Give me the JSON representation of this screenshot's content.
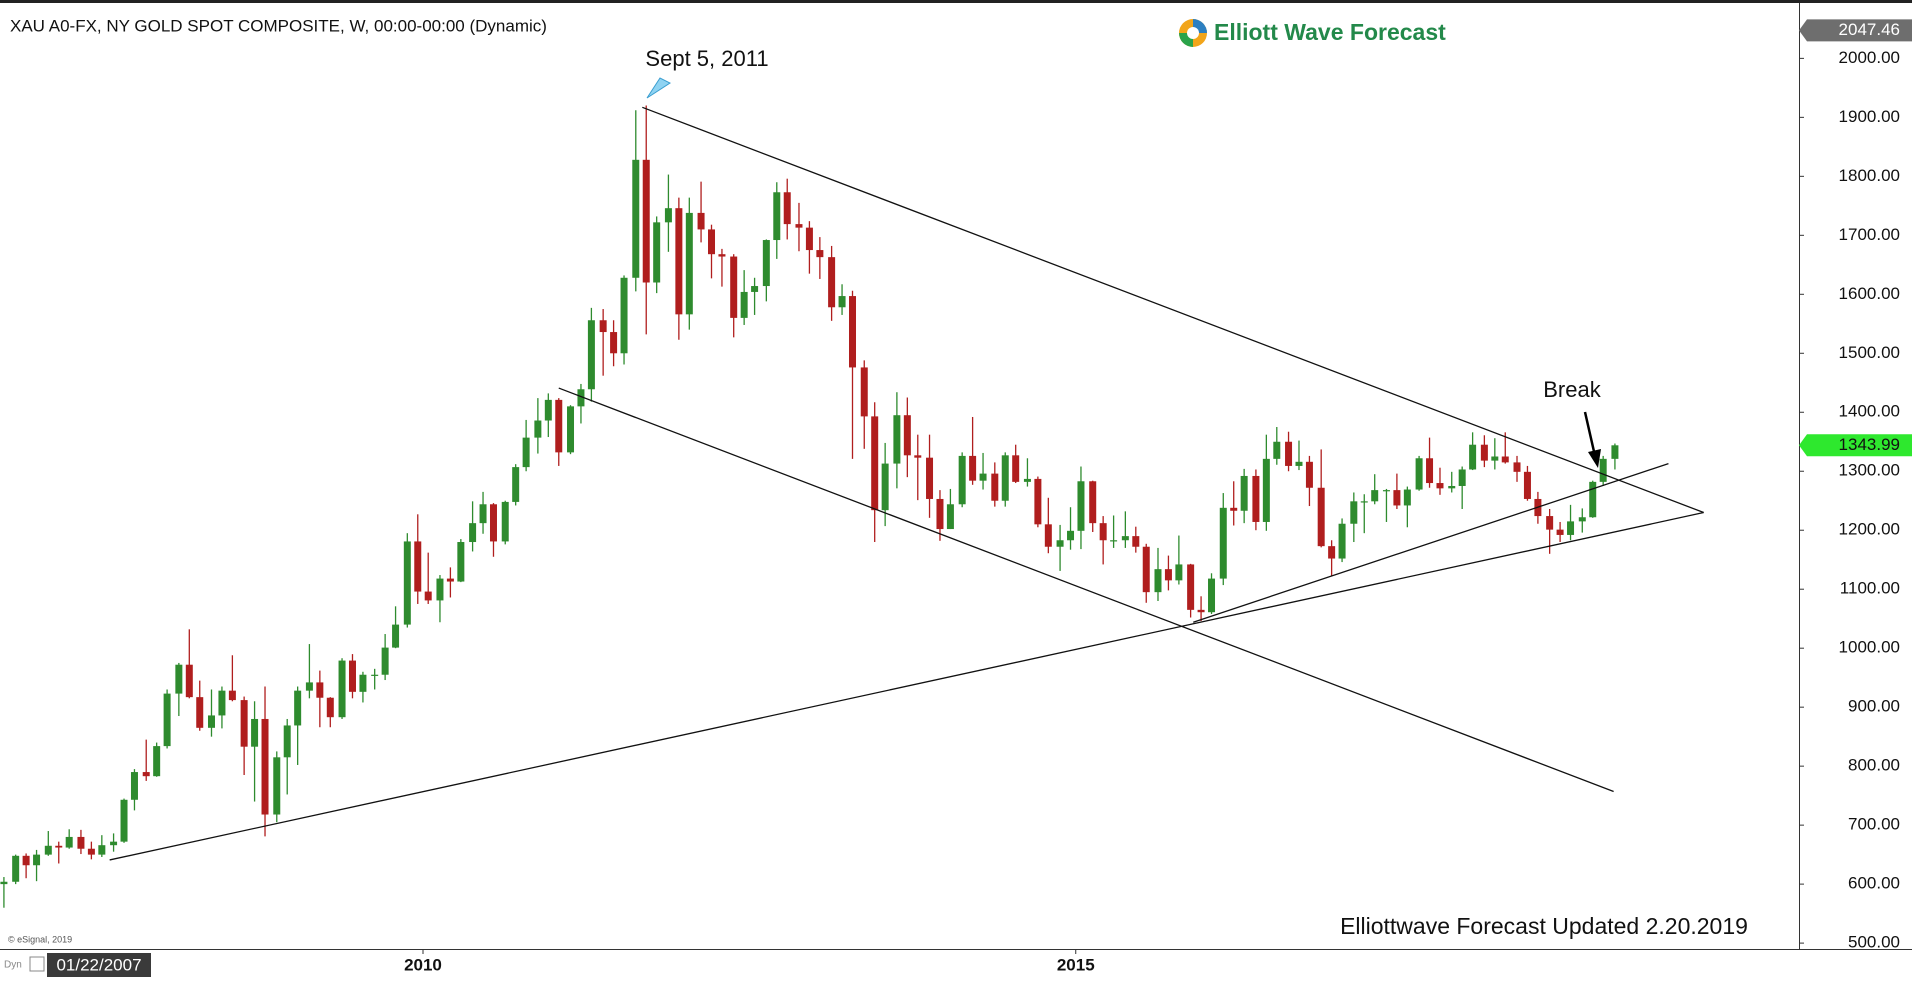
{
  "chart_data": {
    "type": "candlestick",
    "title": "XAU A0-FX, NY GOLD SPOT COMPOSITE, W, 00:00-00:00 (Dynamic)",
    "brand": "Elliott Wave Forecast",
    "footnote": "Elliottwave Forecast Updated 2.20.2019",
    "copyright": "© eSignal, 2019",
    "mode_label": "Dyn",
    "cursor_date": "01/22/2007",
    "up_color": "#2e8b2e",
    "down_color": "#b01e1e",
    "trendline_color": "#111111",
    "xlim": [
      2006.76,
      2020.54
    ],
    "xticks": [
      2010,
      2015
    ],
    "ylim": [
      490,
      2082
    ],
    "yticks": [
      {
        "value": 500,
        "label": "500.00"
      },
      {
        "value": 600,
        "label": "600.00"
      },
      {
        "value": 700,
        "label": "700.00"
      },
      {
        "value": 800,
        "label": "800.00"
      },
      {
        "value": 900,
        "label": "900.00"
      },
      {
        "value": 1000,
        "label": "1000.00"
      },
      {
        "value": 1100,
        "label": "1100.00"
      },
      {
        "value": 1200,
        "label": "1200.00"
      },
      {
        "value": 1300,
        "label": "1300.00"
      },
      {
        "value": 1400,
        "label": "1400.00"
      },
      {
        "value": 1500,
        "label": "1500.00"
      },
      {
        "value": 1600,
        "label": "1600.00"
      },
      {
        "value": 1700,
        "label": "1700.00"
      },
      {
        "value": 1800,
        "label": "1800.00"
      },
      {
        "value": 1900,
        "label": "1900.00"
      },
      {
        "value": 2000,
        "label": "2000.00"
      }
    ],
    "price_labels": [
      {
        "value": 2047.46,
        "label": "2047.46",
        "color": "#6e6e6e",
        "text_color": "#ffffff"
      },
      {
        "value": 1343.99,
        "label": "1343.99",
        "color": "#2ee82e",
        "text_color": "#111111"
      }
    ],
    "annotations": [
      {
        "text": "Sept 5, 2011"
      },
      {
        "text": "Break"
      }
    ],
    "trendlines": [
      {
        "x": [
          2011.68,
          2019.81
        ],
        "y": [
          1917,
          1230
        ]
      },
      {
        "x": [
          2011.04,
          2019.12
        ],
        "y": [
          1441,
          757
        ]
      },
      {
        "x": [
          2007.6,
          2019.81
        ],
        "y": [
          641,
          1230
        ]
      },
      {
        "x": [
          2015.9,
          2019.54
        ],
        "y": [
          1044,
          1313
        ]
      }
    ],
    "x": [
      2006.79,
      2006.88,
      2006.96,
      2007.04,
      2007.13,
      2007.21,
      2007.29,
      2007.38,
      2007.46,
      2007.54,
      2007.63,
      2007.71,
      2007.79,
      2007.88,
      2007.96,
      2008.04,
      2008.13,
      2008.21,
      2008.29,
      2008.38,
      2008.46,
      2008.54,
      2008.63,
      2008.71,
      2008.79,
      2008.88,
      2008.96,
      2009.04,
      2009.13,
      2009.21,
      2009.29,
      2009.38,
      2009.46,
      2009.54,
      2009.63,
      2009.71,
      2009.79,
      2009.88,
      2009.96,
      2010.04,
      2010.13,
      2010.21,
      2010.29,
      2010.38,
      2010.46,
      2010.54,
      2010.63,
      2010.71,
      2010.79,
      2010.88,
      2010.96,
      2011.04,
      2011.13,
      2011.21,
      2011.29,
      2011.38,
      2011.46,
      2011.54,
      2011.63,
      2011.71,
      2011.79,
      2011.88,
      2011.96,
      2012.04,
      2012.13,
      2012.21,
      2012.29,
      2012.38,
      2012.46,
      2012.54,
      2012.63,
      2012.71,
      2012.79,
      2012.88,
      2012.96,
      2013.04,
      2013.13,
      2013.21,
      2013.29,
      2013.38,
      2013.46,
      2013.54,
      2013.63,
      2013.71,
      2013.79,
      2013.88,
      2013.96,
      2014.04,
      2014.13,
      2014.21,
      2014.29,
      2014.38,
      2014.46,
      2014.54,
      2014.63,
      2014.71,
      2014.79,
      2014.88,
      2014.96,
      2015.04,
      2015.13,
      2015.21,
      2015.29,
      2015.38,
      2015.46,
      2015.54,
      2015.63,
      2015.71,
      2015.79,
      2015.88,
      2015.96,
      2016.04,
      2016.13,
      2016.21,
      2016.29,
      2016.38,
      2016.46,
      2016.54,
      2016.63,
      2016.71,
      2016.79,
      2016.88,
      2016.96,
      2017.04,
      2017.13,
      2017.21,
      2017.29,
      2017.38,
      2017.46,
      2017.54,
      2017.63,
      2017.71,
      2017.79,
      2017.88,
      2017.96,
      2018.04,
      2018.13,
      2018.21,
      2018.29,
      2018.38,
      2018.46,
      2018.54,
      2018.63,
      2018.71,
      2018.79,
      2018.88,
      2018.96,
      2019.04,
      2019.13
    ],
    "open": [
      600,
      604,
      648,
      632,
      650,
      665,
      662,
      680,
      660,
      650,
      666,
      672,
      743,
      790,
      783,
      834,
      923,
      972,
      917,
      865,
      886,
      928,
      912,
      833,
      880,
      718,
      815,
      869,
      928,
      942,
      916,
      883,
      979,
      926,
      955,
      955,
      1001,
      1040,
      1181,
      1096,
      1081,
      1118,
      1113,
      1180,
      1212,
      1244,
      1181,
      1248,
      1307,
      1357,
      1386,
      1421,
      1332,
      1410,
      1439,
      1556,
      1536,
      1500,
      1628,
      1828,
      1620,
      1722,
      1746,
      1566,
      1738,
      1710,
      1668,
      1664,
      1560,
      1604,
      1614,
      1692,
      1773,
      1719,
      1713,
      1675,
      1663,
      1578,
      1597,
      1476,
      1393,
      1234,
      1313,
      1395,
      1327,
      1323,
      1253,
      1202,
      1244,
      1326,
      1284,
      1296,
      1250,
      1327,
      1282,
      1287,
      1210,
      1172,
      1183,
      1199,
      1283,
      1212,
      1183,
      1183,
      1190,
      1172,
      1095,
      1134,
      1115,
      1142,
      1065,
      1061,
      1118,
      1238,
      1233,
      1292,
      1214,
      1321,
      1350,
      1309,
      1316,
      1272,
      1173,
      1152,
      1211,
      1249,
      1249,
      1268,
      1268,
      1242,
      1269,
      1322,
      1280,
      1271,
      1275,
      1303,
      1345,
      1318,
      1325,
      1315,
      1299,
      1253,
      1224,
      1201,
      1192,
      1215,
      1222,
      1282,
      1321
    ],
    "high": [
      612,
      650,
      652,
      658,
      690,
      672,
      693,
      692,
      672,
      683,
      686,
      745,
      795,
      845,
      840,
      930,
      975,
      1032,
      945,
      930,
      935,
      988,
      918,
      910,
      935,
      825,
      880,
      935,
      1007,
      962,
      917,
      983,
      990,
      960,
      965,
      1024,
      1071,
      1195,
      1227,
      1162,
      1124,
      1137,
      1185,
      1249,
      1265,
      1246,
      1250,
      1312,
      1387,
      1424,
      1432,
      1424,
      1412,
      1448,
      1577,
      1575,
      1556,
      1632,
      1912,
      1920,
      1732,
      1803,
      1764,
      1764,
      1791,
      1718,
      1677,
      1668,
      1641,
      1628,
      1693,
      1790,
      1796,
      1755,
      1724,
      1697,
      1682,
      1617,
      1606,
      1488,
      1417,
      1348,
      1434,
      1425,
      1362,
      1362,
      1268,
      1270,
      1332,
      1392,
      1331,
      1315,
      1332,
      1345,
      1322,
      1291,
      1255,
      1209,
      1239,
      1308,
      1284,
      1224,
      1225,
      1232,
      1206,
      1177,
      1170,
      1157,
      1191,
      1143,
      1088,
      1127,
      1263,
      1283,
      1304,
      1303,
      1362,
      1375,
      1367,
      1352,
      1326,
      1337,
      1183,
      1220,
      1264,
      1261,
      1295,
      1270,
      1296,
      1274,
      1326,
      1357,
      1306,
      1299,
      1308,
      1366,
      1361,
      1356,
      1366,
      1326,
      1309,
      1265,
      1236,
      1214,
      1243,
      1237,
      1284,
      1326,
      1347
    ],
    "low": [
      560,
      600,
      610,
      605,
      648,
      635,
      660,
      651,
      642,
      646,
      655,
      670,
      725,
      775,
      782,
      830,
      885,
      915,
      860,
      850,
      864,
      910,
      785,
      740,
      681,
      705,
      752,
      802,
      915,
      866,
      866,
      880,
      915,
      908,
      930,
      946,
      1000,
      1035,
      1075,
      1075,
      1044,
      1086,
      1112,
      1164,
      1194,
      1155,
      1176,
      1242,
      1300,
      1330,
      1358,
      1309,
      1329,
      1381,
      1418,
      1462,
      1478,
      1481,
      1605,
      1532,
      1602,
      1672,
      1523,
      1540,
      1688,
      1627,
      1613,
      1527,
      1548,
      1565,
      1588,
      1660,
      1693,
      1673,
      1635,
      1626,
      1555,
      1565,
      1321,
      1338,
      1180,
      1207,
      1271,
      1290,
      1251,
      1221,
      1182,
      1202,
      1239,
      1277,
      1269,
      1240,
      1240,
      1280,
      1274,
      1205,
      1161,
      1131,
      1167,
      1168,
      1197,
      1142,
      1170,
      1170,
      1162,
      1077,
      1080,
      1098,
      1108,
      1052,
      1046,
      1058,
      1107,
      1208,
      1212,
      1200,
      1199,
      1311,
      1300,
      1302,
      1241,
      1171,
      1123,
      1146,
      1180,
      1195,
      1244,
      1214,
      1236,
      1205,
      1267,
      1272,
      1260,
      1264,
      1236,
      1302,
      1307,
      1303,
      1313,
      1282,
      1250,
      1211,
      1160,
      1180,
      1183,
      1196,
      1221,
      1275,
      1303
    ],
    "close": [
      604,
      648,
      632,
      650,
      665,
      662,
      680,
      660,
      650,
      666,
      672,
      743,
      790,
      783,
      834,
      923,
      972,
      917,
      865,
      886,
      928,
      912,
      833,
      880,
      718,
      815,
      869,
      928,
      942,
      916,
      883,
      979,
      926,
      955,
      955,
      1001,
      1040,
      1181,
      1096,
      1081,
      1118,
      1113,
      1180,
      1212,
      1244,
      1181,
      1248,
      1307,
      1357,
      1386,
      1421,
      1332,
      1410,
      1439,
      1556,
      1536,
      1500,
      1628,
      1828,
      1620,
      1722,
      1746,
      1566,
      1738,
      1710,
      1668,
      1664,
      1560,
      1604,
      1614,
      1692,
      1773,
      1719,
      1713,
      1675,
      1663,
      1578,
      1597,
      1476,
      1393,
      1234,
      1313,
      1395,
      1327,
      1323,
      1253,
      1202,
      1244,
      1326,
      1284,
      1296,
      1250,
      1327,
      1282,
      1287,
      1210,
      1172,
      1183,
      1199,
      1283,
      1212,
      1183,
      1183,
      1190,
      1172,
      1095,
      1134,
      1115,
      1142,
      1065,
      1061,
      1118,
      1238,
      1233,
      1292,
      1214,
      1321,
      1350,
      1309,
      1316,
      1272,
      1173,
      1152,
      1211,
      1249,
      1249,
      1268,
      1268,
      1242,
      1269,
      1322,
      1280,
      1271,
      1275,
      1303,
      1345,
      1318,
      1325,
      1315,
      1299,
      1253,
      1224,
      1201,
      1192,
      1215,
      1222,
      1282,
      1321,
      1343.99
    ]
  }
}
